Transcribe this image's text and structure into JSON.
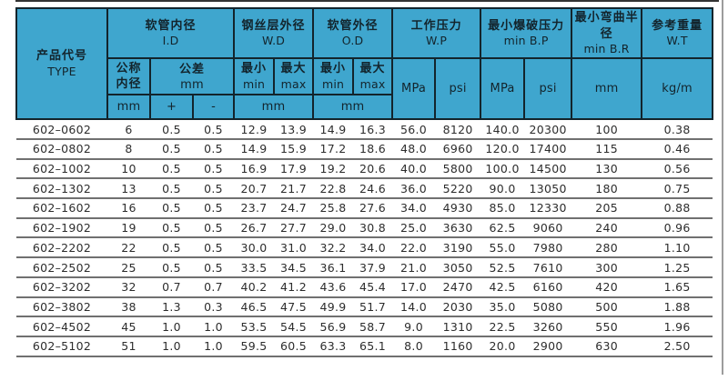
{
  "table": {
    "header": {
      "product_code": {
        "zh": "产品代号",
        "en": "TYPE"
      },
      "groups": [
        {
          "zh": "软管内径",
          "en": "I.D"
        },
        {
          "zh": "钢丝层外径",
          "en": "W.D"
        },
        {
          "zh": "软管外径",
          "en": "O.D"
        },
        {
          "zh": "工作压力",
          "en": "W.P"
        },
        {
          "zh": "最小爆破压力",
          "en": "min B.P"
        },
        {
          "zh": "最小弯曲半径",
          "en": "min B.R"
        },
        {
          "zh": "参考重量",
          "en": "W.T"
        }
      ],
      "sub": {
        "nominal_line1": "公称",
        "nominal_line2": "内径",
        "tolerance": "公差",
        "mm": "mm",
        "plus": "+",
        "minus": "-",
        "min_zh": "最小",
        "min_en": "min",
        "max_zh": "最大",
        "max_en": "max",
        "mpa": "MPa",
        "psi": "psi",
        "kgm": "kg/m"
      }
    },
    "columns": [
      "product-code",
      "nominal-id-mm",
      "tolerance-plus",
      "tolerance-minus",
      "wd-min",
      "wd-max",
      "od-min",
      "od-max",
      "wp-mpa",
      "wp-psi",
      "bp-mpa",
      "bp-psi",
      "br-mm",
      "wt-kgm"
    ],
    "rows": [
      [
        "602–0602",
        "6",
        "0.5",
        "0.5",
        "12.9",
        "13.9",
        "14.9",
        "16.3",
        "56.0",
        "8120",
        "140.0",
        "20300",
        "100",
        "0.38"
      ],
      [
        "602–0802",
        "8",
        "0.5",
        "0.5",
        "14.9",
        "15.9",
        "17.2",
        "18.6",
        "48.0",
        "6960",
        "120.0",
        "17400",
        "115",
        "0.46"
      ],
      [
        "602–1002",
        "10",
        "0.5",
        "0.5",
        "16.9",
        "17.9",
        "19.2",
        "20.6",
        "40.0",
        "5800",
        "100.0",
        "14500",
        "130",
        "0.56"
      ],
      [
        "602–1302",
        "13",
        "0.5",
        "0.5",
        "20.7",
        "21.7",
        "22.8",
        "24.6",
        "36.0",
        "5220",
        "90.0",
        "13050",
        "180",
        "0.75"
      ],
      [
        "602–1602",
        "16",
        "0.5",
        "0.5",
        "23.7",
        "24.7",
        "25.8",
        "27.6",
        "34.0",
        "4930",
        "85.0",
        "12330",
        "205",
        "0.88"
      ],
      [
        "602–1902",
        "19",
        "0.5",
        "0.5",
        "26.7",
        "27.7",
        "29.0",
        "30.8",
        "25.0",
        "3630",
        "62.5",
        "9060",
        "240",
        "0.96"
      ],
      [
        "602–2202",
        "22",
        "0.5",
        "0.5",
        "30.0",
        "31.0",
        "32.2",
        "34.0",
        "22.0",
        "3190",
        "55.0",
        "7980",
        "280",
        "1.10"
      ],
      [
        "602–2502",
        "25",
        "0.5",
        "0.5",
        "33.5",
        "34.5",
        "36.1",
        "37.9",
        "21.0",
        "3050",
        "52.5",
        "7610",
        "300",
        "1.25"
      ],
      [
        "602–3202",
        "32",
        "0.7",
        "0.7",
        "40.2",
        "41.2",
        "43.6",
        "45.4",
        "17.0",
        "2470",
        "42.5",
        "6160",
        "420",
        "1.65"
      ],
      [
        "602–3802",
        "38",
        "1.3",
        "0.3",
        "46.5",
        "47.5",
        "49.9",
        "51.7",
        "14.0",
        "2030",
        "35.0",
        "5080",
        "500",
        "1.88"
      ],
      [
        "602–4502",
        "45",
        "1.0",
        "1.0",
        "53.5",
        "54.5",
        "56.9",
        "58.7",
        "9.0",
        "1310",
        "22.5",
        "3260",
        "550",
        "1.96"
      ],
      [
        "602–5102",
        "51",
        "1.0",
        "1.0",
        "59.5",
        "60.5",
        "63.3",
        "65.1",
        "8.0",
        "1160",
        "20.0",
        "2900",
        "630",
        "2.50"
      ]
    ]
  },
  "colors": {
    "header_bg": "#3FA6CE",
    "header_border": "#13242C",
    "header_text": "#13242C",
    "body_text": "#2D2D2D",
    "row_line": "#707070",
    "top_rule": "#333333",
    "page_edge": "#9C9C9C"
  }
}
